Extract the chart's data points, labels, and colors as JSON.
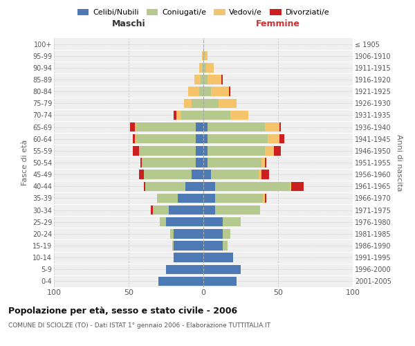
{
  "age_groups_bottom_top": [
    "0-4",
    "5-9",
    "10-14",
    "15-19",
    "20-24",
    "25-29",
    "30-34",
    "35-39",
    "40-44",
    "45-49",
    "50-54",
    "55-59",
    "60-64",
    "65-69",
    "70-74",
    "75-79",
    "80-84",
    "85-89",
    "90-94",
    "95-99",
    "100+"
  ],
  "birth_years_bottom_top": [
    "2001-2005",
    "1996-2000",
    "1991-1995",
    "1986-1990",
    "1981-1985",
    "1976-1980",
    "1971-1975",
    "1966-1970",
    "1961-1965",
    "1956-1960",
    "1951-1955",
    "1946-1950",
    "1941-1945",
    "1936-1940",
    "1931-1935",
    "1926-1930",
    "1921-1925",
    "1916-1920",
    "1911-1915",
    "1906-1910",
    "≤ 1905"
  ],
  "maschi_celibi": [
    30,
    25,
    20,
    20,
    20,
    25,
    23,
    17,
    12,
    8,
    5,
    5,
    5,
    5,
    0,
    0,
    0,
    0,
    0,
    0,
    0
  ],
  "maschi_coniugati": [
    0,
    0,
    0,
    1,
    2,
    4,
    11,
    14,
    27,
    32,
    36,
    38,
    40,
    40,
    15,
    8,
    3,
    2,
    1,
    0,
    0
  ],
  "maschi_vedovi": [
    0,
    0,
    0,
    0,
    0,
    0,
    0,
    0,
    0,
    0,
    0,
    0,
    1,
    1,
    3,
    5,
    7,
    4,
    2,
    1,
    0
  ],
  "maschi_divorziati": [
    0,
    0,
    0,
    0,
    0,
    0,
    1,
    0,
    1,
    3,
    1,
    4,
    1,
    3,
    2,
    0,
    0,
    0,
    0,
    0,
    0
  ],
  "femmine_nubili": [
    22,
    25,
    20,
    13,
    13,
    13,
    8,
    8,
    8,
    5,
    3,
    3,
    3,
    3,
    0,
    0,
    0,
    0,
    0,
    0,
    0
  ],
  "femmine_coniugate": [
    0,
    0,
    0,
    3,
    5,
    12,
    30,
    32,
    50,
    32,
    36,
    38,
    40,
    38,
    18,
    10,
    5,
    3,
    2,
    1,
    0
  ],
  "femmine_vedove": [
    0,
    0,
    0,
    0,
    0,
    0,
    0,
    1,
    1,
    2,
    2,
    6,
    8,
    10,
    12,
    12,
    12,
    9,
    5,
    2,
    0
  ],
  "femmine_divorziate": [
    0,
    0,
    0,
    0,
    0,
    0,
    0,
    1,
    8,
    5,
    1,
    5,
    3,
    1,
    0,
    0,
    1,
    1,
    0,
    0,
    0
  ],
  "colors": {
    "celibi_nubili": "#4d7ab5",
    "coniugati": "#b5c98e",
    "vedovi": "#f5c46a",
    "divorziati": "#cc2020"
  },
  "xlim": 100,
  "title": "Popolazione per età, sesso e stato civile - 2006",
  "subtitle": "COMUNE DI SCIOLZE (TO) - Dati ISTAT 1° gennaio 2006 - Elaborazione TUTTITALIA.IT",
  "ylabel_left": "Fasce di età",
  "ylabel_right": "Anni di nascita",
  "header_left": "Maschi",
  "header_right": "Femmine",
  "legend_labels": [
    "Celibi/Nubili",
    "Coniugati/e",
    "Vedovi/e",
    "Divorziati/e"
  ],
  "background_color": "#ffffff",
  "plot_background": "#efefef"
}
